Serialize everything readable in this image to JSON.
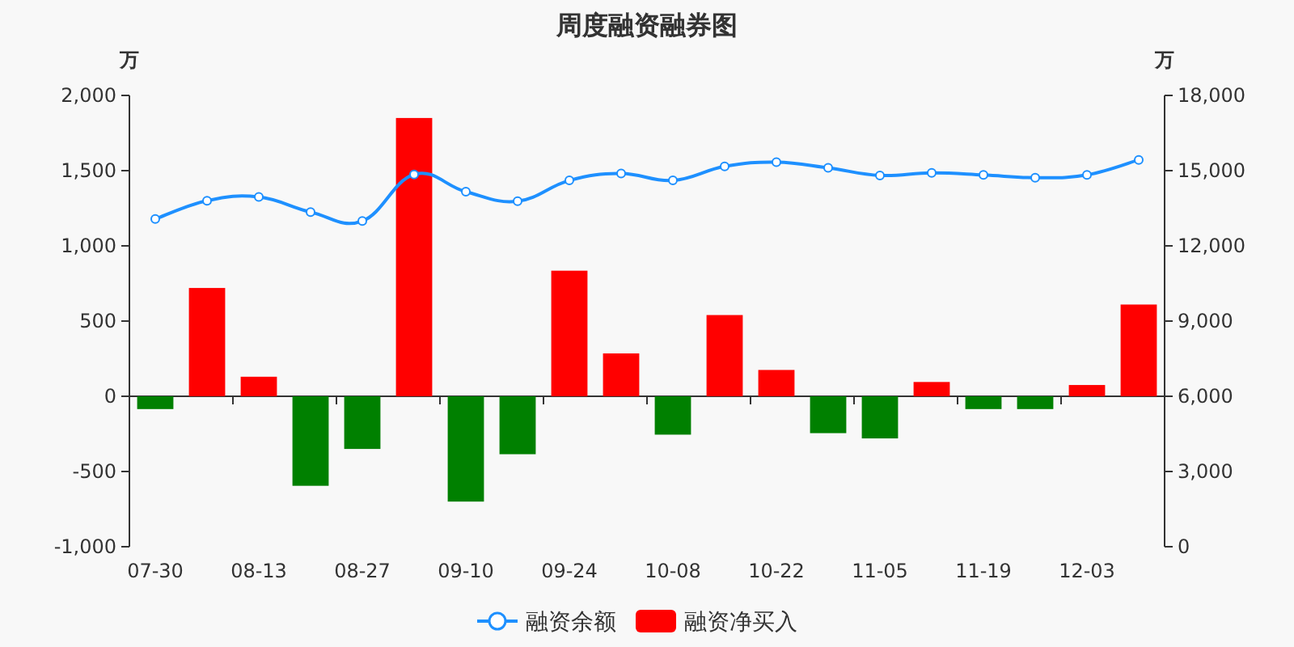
{
  "chart_data": {
    "type": "bar",
    "title": "周度融资融券图",
    "ylabel": "万",
    "y2label": "万",
    "legend": "bottom",
    "categories": [
      "07-30",
      null,
      "08-13",
      null,
      "08-27",
      null,
      "09-10",
      null,
      "09-24",
      null,
      "10-08",
      null,
      "10-22",
      null,
      "11-05",
      null,
      "11-19",
      null,
      "12-03",
      null
    ],
    "ylim": [
      -1000,
      2000
    ],
    "yticks": [
      {
        "value": -1000,
        "label": "-1,000"
      },
      -500,
      0,
      500,
      {
        "value": 1000,
        "label": "1,000"
      },
      {
        "value": 1500,
        "label": "1,500"
      },
      {
        "value": 2000,
        "label": "2,000"
      }
    ],
    "y2lim": [
      0,
      18000
    ],
    "y2ticks": [
      0,
      {
        "value": 3000,
        "label": "3,000"
      },
      {
        "value": 6000,
        "label": "6,000"
      },
      {
        "value": 9000,
        "label": "9,000"
      },
      {
        "value": 12000,
        "label": "12,000"
      },
      {
        "value": 15000,
        "label": "15,000"
      },
      {
        "value": 18000,
        "label": "18,000"
      }
    ],
    "series": [
      {
        "name": "融资余额",
        "type": "line",
        "axis": "y2",
        "marker": "circle",
        "color": "#1e90ff",
        "values": [
          13070,
          13800,
          13950,
          13350,
          12990,
          14850,
          14160,
          13780,
          14610,
          14890,
          14610,
          15170,
          15340,
          15110,
          14810,
          14910,
          14830,
          14720,
          14830,
          15430
        ]
      },
      {
        "name": "融资净买入",
        "color": "#ff0000",
        "values": [
          -85,
          720,
          130,
          -595,
          -350,
          1850,
          -700,
          -385,
          835,
          285,
          -255,
          540,
          175,
          -245,
          -280,
          95,
          -85,
          -85,
          75,
          610
        ],
        "colors": [
          "#008000",
          "#ff0000",
          "#ff0000",
          "#008000",
          "#008000",
          "#ff0000",
          "#008000",
          "#008000",
          "#ff0000",
          "#ff0000",
          "#008000",
          "#ff0000",
          "#ff0000",
          "#008000",
          "#008000",
          "#ff0000",
          "#008000",
          "#008000",
          "#ff0000",
          "#ff0000"
        ]
      }
    ]
  }
}
